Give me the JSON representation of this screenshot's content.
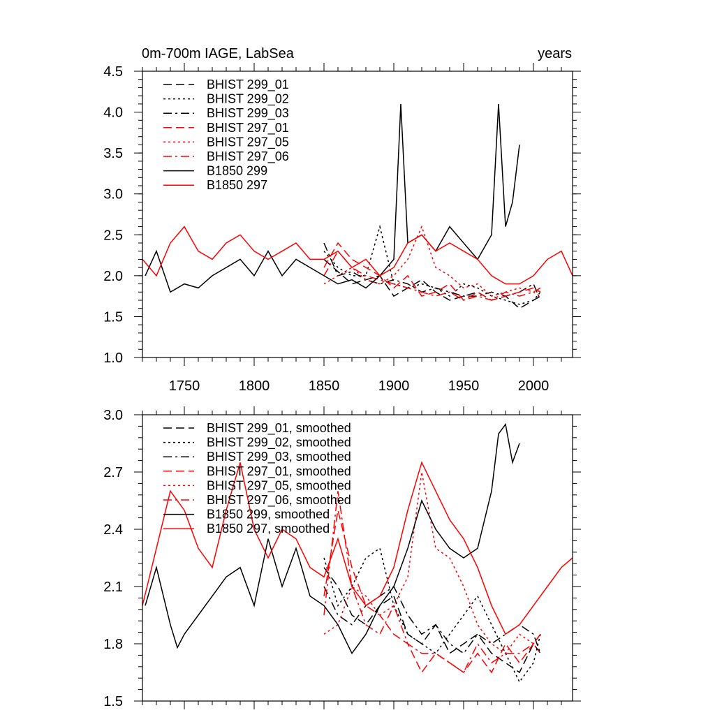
{
  "chart_data": [
    {
      "type": "line",
      "title": "0m-700m IAGE, LabSea",
      "title_right": "years",
      "xlim": [
        1720,
        2028
      ],
      "ylim": [
        1.0,
        4.5
      ],
      "xticks": [
        1750,
        1800,
        1850,
        1900,
        1950,
        2000
      ],
      "xtick_labels": [
        "1750",
        "1800",
        "1850",
        "1900",
        "1950",
        "2000"
      ],
      "yticks": [
        1.0,
        1.5,
        2.0,
        2.5,
        3.0,
        3.5,
        4.0,
        4.5
      ],
      "ytick_labels": [
        "1.0",
        "1.5",
        "2.0",
        "2.5",
        "3.0",
        "3.5",
        "4.0",
        "4.5"
      ],
      "legend_position": "top-left",
      "series": [
        {
          "name": "BHIST 299_01",
          "color": "#000000",
          "dash": "dashed",
          "x": [
            1850,
            1860,
            1870,
            1880,
            1890,
            1900,
            1910,
            1920,
            1930,
            1940,
            1950,
            1960,
            1970,
            1980,
            1990,
            2000,
            2005
          ],
          "y": [
            2.2,
            2.05,
            1.9,
            1.95,
            2.0,
            1.75,
            1.85,
            1.95,
            1.8,
            1.7,
            1.75,
            1.8,
            1.7,
            1.75,
            1.6,
            1.7,
            1.75
          ]
        },
        {
          "name": "BHIST 299_02",
          "color": "#000000",
          "dash": "dotted",
          "x": [
            1850,
            1860,
            1870,
            1880,
            1890,
            1900,
            1910,
            1920,
            1930,
            1940,
            1950,
            1960,
            1970,
            1980,
            1990,
            2000,
            2005
          ],
          "y": [
            2.3,
            2.1,
            2.0,
            2.0,
            2.6,
            1.9,
            1.85,
            1.9,
            1.85,
            1.75,
            1.9,
            1.85,
            1.75,
            1.7,
            1.65,
            1.7,
            1.8
          ]
        },
        {
          "name": "BHIST 299_03",
          "color": "#000000",
          "dash": "dashdot",
          "x": [
            1850,
            1860,
            1870,
            1880,
            1890,
            1900,
            1910,
            1920,
            1930,
            1940,
            1950,
            1960,
            1970,
            1980,
            1990,
            2000,
            2005
          ],
          "y": [
            2.4,
            2.0,
            2.05,
            1.95,
            1.9,
            1.95,
            1.9,
            1.8,
            1.85,
            1.8,
            1.75,
            1.75,
            1.8,
            1.75,
            1.8,
            1.9,
            1.7
          ]
        },
        {
          "name": "BHIST 297_01",
          "color": "#ff0000",
          "dash": "dashed",
          "x": [
            1850,
            1860,
            1870,
            1880,
            1890,
            1900,
            1910,
            1920,
            1930,
            1940,
            1950,
            1960,
            1970,
            1980,
            1990,
            2000,
            2005
          ],
          "y": [
            2.1,
            2.4,
            2.2,
            2.1,
            2.0,
            1.85,
            2.0,
            1.75,
            1.8,
            1.9,
            1.7,
            1.8,
            1.7,
            1.75,
            1.8,
            1.85,
            1.8
          ]
        },
        {
          "name": "BHIST 297_05",
          "color": "#ff0000",
          "dash": "dotted",
          "x": [
            1850,
            1860,
            1870,
            1880,
            1890,
            1900,
            1910,
            1920,
            1930,
            1940,
            1950,
            1960,
            1970,
            1980,
            1990,
            2000,
            2005
          ],
          "y": [
            1.9,
            2.0,
            2.1,
            1.95,
            1.9,
            2.0,
            2.2,
            2.6,
            2.1,
            2.0,
            1.85,
            1.9,
            1.75,
            1.8,
            1.85,
            1.8,
            1.75
          ]
        },
        {
          "name": "BHIST 297_06",
          "color": "#ff0000",
          "dash": "dashdot",
          "x": [
            1850,
            1860,
            1870,
            1880,
            1890,
            1900,
            1910,
            1920,
            1930,
            1940,
            1950,
            1960,
            1970,
            1980,
            1990,
            2000,
            2005
          ],
          "y": [
            2.0,
            2.3,
            2.1,
            2.0,
            1.95,
            1.9,
            1.85,
            1.8,
            1.75,
            1.8,
            1.7,
            1.75,
            1.7,
            1.8,
            1.75,
            1.8,
            1.85
          ]
        },
        {
          "name": "B1850 299",
          "color": "#000000",
          "dash": "solid",
          "x": [
            1722,
            1730,
            1740,
            1750,
            1760,
            1770,
            1780,
            1790,
            1800,
            1810,
            1820,
            1830,
            1840,
            1850,
            1860,
            1870,
            1880,
            1890,
            1900,
            1905,
            1910,
            1920,
            1930,
            1940,
            1950,
            1960,
            1970,
            1975,
            1980,
            1985,
            1990
          ],
          "y": [
            2.0,
            2.3,
            1.8,
            1.9,
            1.85,
            2.0,
            2.1,
            2.2,
            2.0,
            2.3,
            2.0,
            2.2,
            2.1,
            2.0,
            1.9,
            1.95,
            1.85,
            2.0,
            2.2,
            4.1,
            2.4,
            2.5,
            2.3,
            2.6,
            2.4,
            2.2,
            2.5,
            4.1,
            2.6,
            2.9,
            3.6
          ]
        },
        {
          "name": "B1850 297",
          "color": "#ff0000",
          "dash": "solid",
          "x": [
            1720,
            1730,
            1740,
            1750,
            1760,
            1770,
            1780,
            1790,
            1800,
            1810,
            1820,
            1830,
            1840,
            1850,
            1860,
            1870,
            1880,
            1890,
            1900,
            1910,
            1920,
            1930,
            1940,
            1950,
            1960,
            1970,
            1980,
            1990,
            2000,
            2010,
            2020,
            2028
          ],
          "y": [
            2.2,
            2.0,
            2.4,
            2.6,
            2.3,
            2.2,
            2.4,
            2.5,
            2.3,
            2.2,
            2.3,
            2.4,
            2.2,
            2.2,
            2.3,
            2.1,
            2.2,
            2.0,
            2.1,
            2.4,
            2.5,
            2.3,
            2.4,
            2.3,
            2.2,
            2.0,
            1.9,
            1.9,
            2.0,
            2.2,
            2.3,
            2.0
          ]
        }
      ]
    },
    {
      "type": "line",
      "xlim": [
        1720,
        2028
      ],
      "ylim": [
        1.5,
        3.0
      ],
      "xticks": [
        1750,
        1800,
        1850,
        1900,
        1950,
        2000
      ],
      "yticks": [
        1.5,
        1.8,
        2.1,
        2.4,
        2.7,
        3.0
      ],
      "ytick_labels": [
        "1.5",
        "1.8",
        "2.1",
        "2.4",
        "2.7",
        "3.0"
      ],
      "legend_position": "top-left",
      "series": [
        {
          "name": "BHIST 299_01, smoothed",
          "color": "#000000",
          "dash": "dashed",
          "x": [
            1850,
            1860,
            1870,
            1880,
            1890,
            1900,
            1910,
            1920,
            1930,
            1940,
            1950,
            1960,
            1970,
            1980,
            1990,
            2000,
            2005
          ],
          "y": [
            2.2,
            2.1,
            1.95,
            1.9,
            2.0,
            2.05,
            1.85,
            1.8,
            1.9,
            1.75,
            1.8,
            1.85,
            1.75,
            1.7,
            1.65,
            1.8,
            1.75
          ]
        },
        {
          "name": "BHIST 299_02, smoothed",
          "color": "#000000",
          "dash": "dotted",
          "x": [
            1850,
            1860,
            1870,
            1880,
            1890,
            1900,
            1910,
            1920,
            1930,
            1940,
            1950,
            1960,
            1970,
            1980,
            1990,
            2000,
            2005
          ],
          "y": [
            2.25,
            2.0,
            2.1,
            2.25,
            2.3,
            2.0,
            1.85,
            1.8,
            1.75,
            1.85,
            1.95,
            2.05,
            1.9,
            1.75,
            1.6,
            1.7,
            1.85
          ]
        },
        {
          "name": "BHIST 299_03, smoothed",
          "color": "#000000",
          "dash": "dashdot",
          "x": [
            1850,
            1860,
            1870,
            1880,
            1890,
            1900,
            1910,
            1920,
            1930,
            1940,
            1950,
            1960,
            1970,
            1980,
            1990,
            2000,
            2005
          ],
          "y": [
            2.1,
            1.95,
            1.9,
            2.0,
            2.05,
            2.1,
            1.95,
            1.85,
            1.9,
            1.8,
            1.75,
            1.85,
            1.8,
            1.85,
            1.9,
            1.85,
            1.75
          ]
        },
        {
          "name": "BHIST 297_01, smoothed",
          "color": "#ff0000",
          "dash": "dashed",
          "x": [
            1850,
            1860,
            1870,
            1880,
            1890,
            1900,
            1910,
            1920,
            1930,
            1940,
            1950,
            1960,
            1970,
            1980,
            1990,
            2000,
            2005
          ],
          "y": [
            2.05,
            2.5,
            2.2,
            2.0,
            1.95,
            1.85,
            1.8,
            1.65,
            1.75,
            1.7,
            1.65,
            1.75,
            1.65,
            1.8,
            1.7,
            1.8,
            1.85
          ]
        },
        {
          "name": "BHIST 297_05, smoothed",
          "color": "#ff0000",
          "dash": "dotted",
          "x": [
            1850,
            1860,
            1870,
            1880,
            1890,
            1900,
            1910,
            1920,
            1930,
            1940,
            1950,
            1960,
            1970,
            1980,
            1990,
            2000,
            2005
          ],
          "y": [
            1.85,
            1.9,
            2.1,
            2.05,
            1.95,
            2.0,
            2.15,
            2.7,
            2.3,
            2.25,
            2.1,
            1.9,
            1.8,
            1.75,
            1.85,
            1.8,
            1.75
          ]
        },
        {
          "name": "BHIST 297_06, smoothed",
          "color": "#ff0000",
          "dash": "dashdot",
          "x": [
            1850,
            1860,
            1870,
            1880,
            1890,
            1900,
            1910,
            1920,
            1930,
            1940,
            1950,
            1960,
            1970,
            1980,
            1990,
            2000,
            2005
          ],
          "y": [
            1.95,
            2.6,
            2.1,
            1.9,
            1.85,
            2.0,
            1.8,
            1.75,
            1.75,
            1.7,
            1.65,
            1.8,
            1.7,
            1.75,
            1.75,
            1.8,
            1.85
          ]
        },
        {
          "name": "B1850 299, smoothed",
          "color": "#000000",
          "dash": "solid",
          "x": [
            1722,
            1730,
            1740,
            1745,
            1750,
            1760,
            1770,
            1780,
            1790,
            1800,
            1810,
            1820,
            1830,
            1840,
            1850,
            1860,
            1870,
            1880,
            1890,
            1900,
            1910,
            1920,
            1930,
            1940,
            1950,
            1960,
            1970,
            1975,
            1980,
            1985,
            1990
          ],
          "y": [
            2.0,
            2.2,
            1.9,
            1.78,
            1.85,
            1.95,
            2.05,
            2.15,
            2.2,
            2.0,
            2.35,
            2.1,
            2.3,
            2.05,
            2.0,
            1.9,
            1.75,
            1.85,
            2.0,
            2.1,
            2.3,
            2.55,
            2.4,
            2.3,
            2.25,
            2.3,
            2.6,
            2.9,
            2.95,
            2.75,
            2.85
          ]
        },
        {
          "name": "B1850 297, smoothed",
          "color": "#ff0000",
          "dash": "solid",
          "x": [
            1720,
            1730,
            1740,
            1750,
            1760,
            1770,
            1780,
            1790,
            1800,
            1810,
            1820,
            1830,
            1840,
            1850,
            1860,
            1870,
            1880,
            1890,
            1900,
            1910,
            1920,
            1930,
            1940,
            1950,
            1960,
            1970,
            1980,
            1990,
            2000,
            2010,
            2020,
            2028
          ],
          "y": [
            2.0,
            2.3,
            2.6,
            2.5,
            2.3,
            2.2,
            2.5,
            2.75,
            2.4,
            2.25,
            2.4,
            2.35,
            2.2,
            2.15,
            2.35,
            2.1,
            2.0,
            2.05,
            2.2,
            2.5,
            2.75,
            2.6,
            2.45,
            2.35,
            2.2,
            2.0,
            1.85,
            1.9,
            2.0,
            2.1,
            2.2,
            2.25
          ]
        }
      ]
    }
  ]
}
